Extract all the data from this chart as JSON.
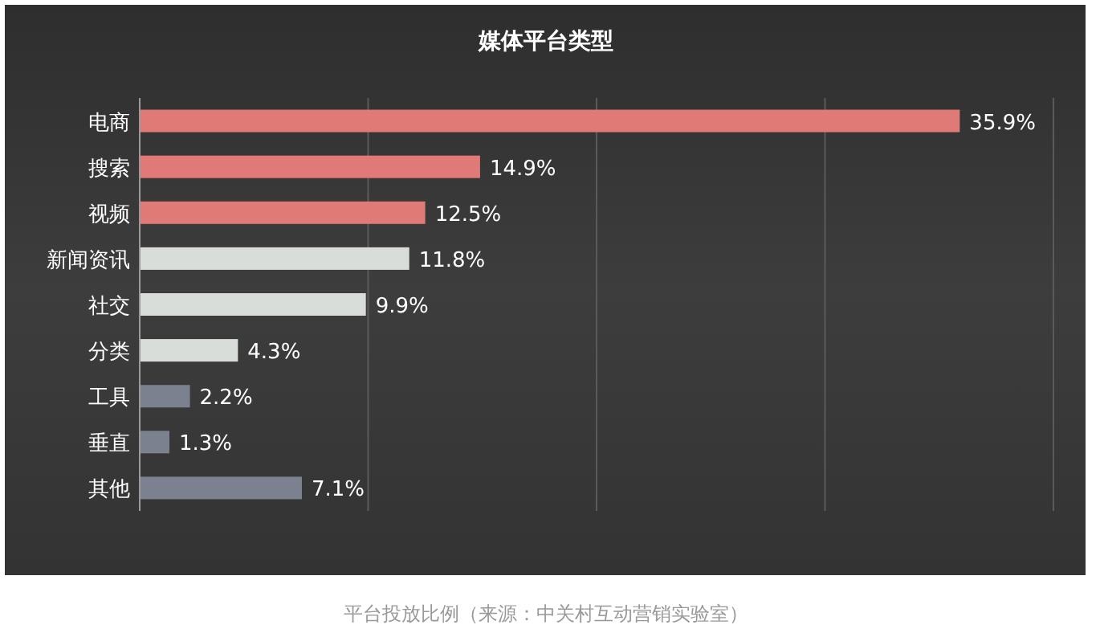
{
  "chart_data": {
    "type": "bar",
    "orientation": "horizontal",
    "title": "媒体平台类型",
    "categories": [
      "电商",
      "搜索",
      "视频",
      "新闻资讯",
      "社交",
      "分类",
      "工具",
      "垂直",
      "其他"
    ],
    "values": [
      35.9,
      14.9,
      12.5,
      11.8,
      9.9,
      4.3,
      2.2,
      1.3,
      7.1
    ],
    "value_labels": [
      "35.9%",
      "14.9%",
      "12.5%",
      "11.8%",
      "9.9%",
      "4.3%",
      "2.2%",
      "1.3%",
      "7.1%"
    ],
    "colors": [
      "#e07a76",
      "#e07a76",
      "#e07a76",
      "#d9ddd9",
      "#d9ddd9",
      "#d9ddd9",
      "#7c8190",
      "#7c8190",
      "#7c8190"
    ],
    "xlim": [
      0,
      40
    ],
    "xticks": [
      {
        "value": 0,
        "label": null
      },
      {
        "value": 10,
        "label": null
      },
      {
        "value": 20,
        "label": null
      },
      {
        "value": 30,
        "label": null
      },
      {
        "value": 40,
        "label": null
      }
    ],
    "grid": "x",
    "tick_labels": "y",
    "annotations": [
      "平台投放比例（来源：中关村互动营销实验室）"
    ]
  }
}
